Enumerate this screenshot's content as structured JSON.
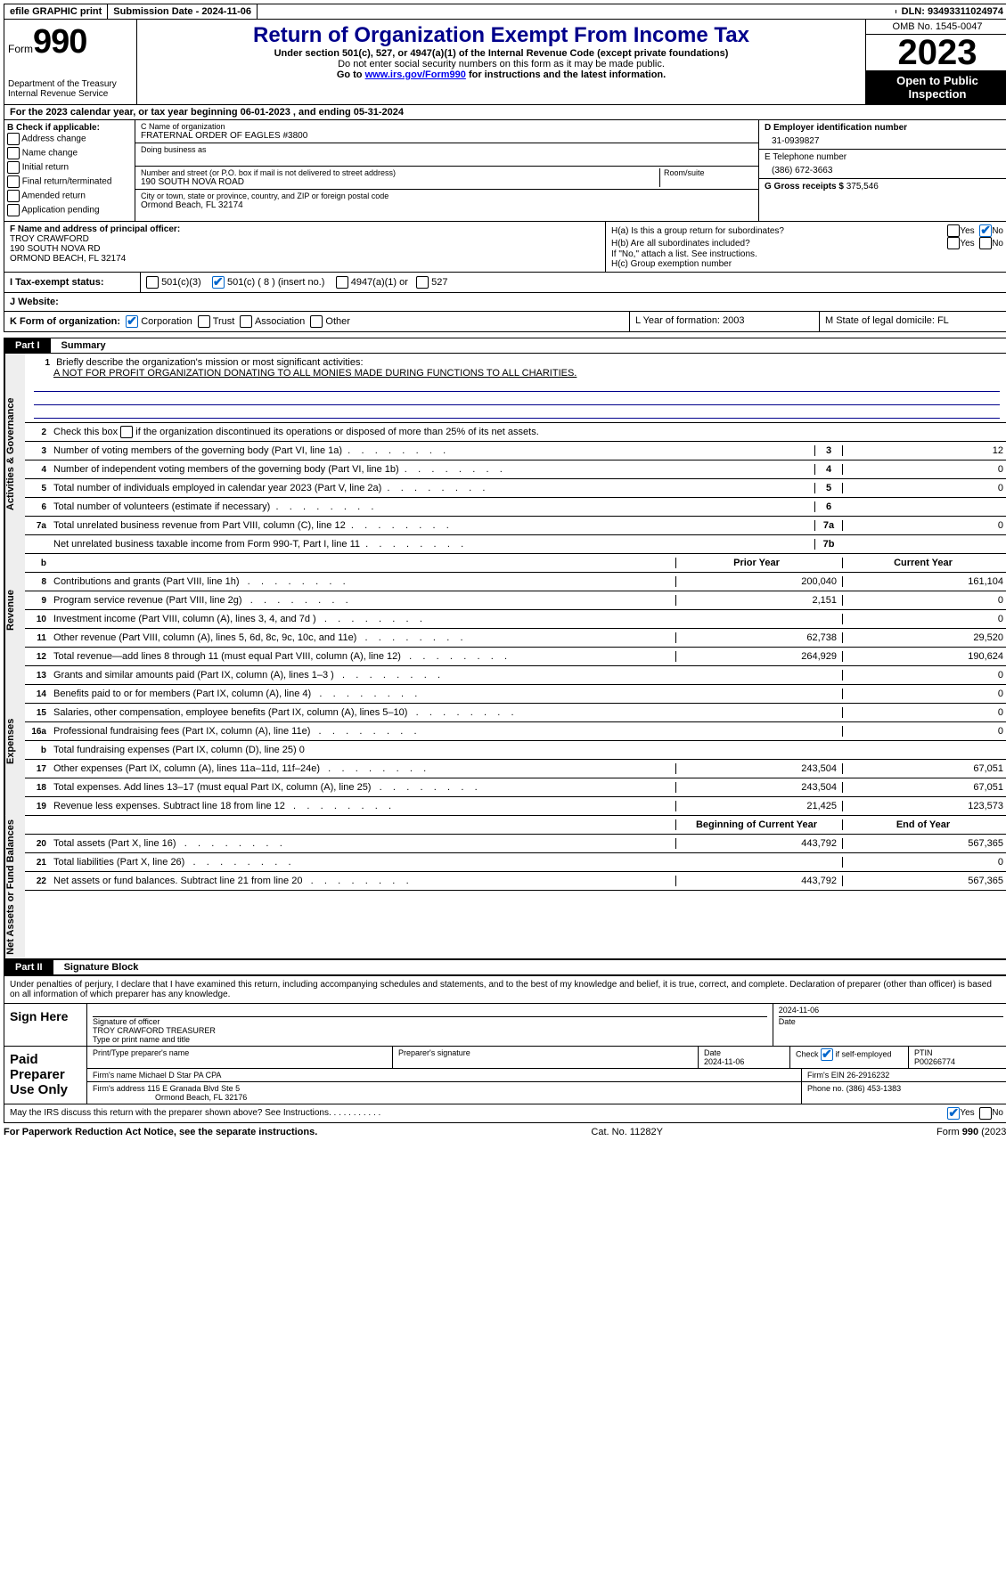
{
  "topbar": {
    "efile": "efile GRAPHIC print",
    "submission": "Submission Date - 2024-11-06",
    "dln": "DLN: 93493311024974"
  },
  "header": {
    "form_prefix": "Form",
    "form_no": "990",
    "dept": "Department of the Treasury Internal Revenue Service",
    "title": "Return of Organization Exempt From Income Tax",
    "sub1": "Under section 501(c), 527, or 4947(a)(1) of the Internal Revenue Code (except private foundations)",
    "sub2": "Do not enter social security numbers on this form as it may be made public.",
    "sub3_prefix": "Go to ",
    "sub3_link": "www.irs.gov/Form990",
    "sub3_suffix": " for instructions and the latest information.",
    "omb": "OMB No. 1545-0047",
    "year": "2023",
    "open": "Open to Public Inspection"
  },
  "line_a": "For the 2023 calendar year, or tax year beginning 06-01-2023   , and ending 05-31-2024",
  "box_b": {
    "title": "B Check if applicable:",
    "opts": [
      "Address change",
      "Name change",
      "Initial return",
      "Final return/terminated",
      "Amended return",
      "Application pending"
    ]
  },
  "box_c": {
    "name_label": "C Name of organization",
    "name": "FRATERNAL ORDER OF EAGLES #3800",
    "dba_label": "Doing business as",
    "addr_label": "Number and street (or P.O. box if mail is not delivered to street address)",
    "room_label": "Room/suite",
    "addr": "190 SOUTH NOVA ROAD",
    "city_label": "City or town, state or province, country, and ZIP or foreign postal code",
    "city": "Ormond Beach, FL  32174"
  },
  "box_d": {
    "label": "D Employer identification number",
    "value": "31-0939827"
  },
  "box_e": {
    "label": "E Telephone number",
    "value": "(386) 672-3663"
  },
  "box_g": {
    "label": "G Gross receipts $",
    "value": "375,546"
  },
  "box_f": {
    "label": "F  Name and address of principal officer:",
    "name": "TROY CRAWFORD",
    "addr1": "190 SOUTH NOVA RD",
    "addr2": "ORMOND BEACH, FL  32174"
  },
  "box_h": {
    "a": "H(a)  Is this a group return for subordinates?",
    "a_no_checked": true,
    "b": "H(b)  Are all subordinates included?",
    "b_note": "If \"No,\" attach a list. See instructions.",
    "c": "H(c)  Group exemption number "
  },
  "box_i": {
    "label": "I  Tax-exempt status:",
    "opts": {
      "c3": "501(c)(3)",
      "c": "501(c) ( 8 ) (insert no.)",
      "p4947": "4947(a)(1) or",
      "p527": "527"
    }
  },
  "box_j": "J  Website: ",
  "box_k": {
    "label": "K Form of organization:",
    "opts": [
      "Corporation",
      "Trust",
      "Association",
      "Other"
    ]
  },
  "box_l": "L Year of formation: 2003",
  "box_m": "M State of legal domicile: FL",
  "part1": {
    "tag": "Part I",
    "title": "Summary",
    "line1_label": "Briefly describe the organization's mission or most significant activities:",
    "line1_val": "A NOT FOR PROFIT ORGANIZATION DONATING TO ALL MONIES MADE DURING FUNCTIONS TO ALL CHARITIES.",
    "line2": "Check this box      if the organization discontinued its operations or disposed of more than 25% of its net assets.",
    "lines_gov": [
      {
        "n": "3",
        "t": "Number of voting members of the governing body (Part VI, line 1a)",
        "col": "3",
        "v": "12"
      },
      {
        "n": "4",
        "t": "Number of independent voting members of the governing body (Part VI, line 1b)",
        "col": "4",
        "v": "0"
      },
      {
        "n": "5",
        "t": "Total number of individuals employed in calendar year 2023 (Part V, line 2a)",
        "col": "5",
        "v": "0"
      },
      {
        "n": "6",
        "t": "Total number of volunteers (estimate if necessary)",
        "col": "6",
        "v": ""
      },
      {
        "n": "7a",
        "t": "Total unrelated business revenue from Part VIII, column (C), line 12",
        "col": "7a",
        "v": "0"
      },
      {
        "n": "",
        "t": "Net unrelated business taxable income from Form 990-T, Part I, line 11",
        "col": "7b",
        "v": ""
      }
    ],
    "header_row": {
      "n": "b",
      "prior": "Prior Year",
      "current": "Current Year"
    },
    "lines_rev": [
      {
        "n": "8",
        "t": "Contributions and grants (Part VIII, line 1h)",
        "p": "200,040",
        "c": "161,104"
      },
      {
        "n": "9",
        "t": "Program service revenue (Part VIII, line 2g)",
        "p": "2,151",
        "c": "0"
      },
      {
        "n": "10",
        "t": "Investment income (Part VIII, column (A), lines 3, 4, and 7d )",
        "p": "",
        "c": "0"
      },
      {
        "n": "11",
        "t": "Other revenue (Part VIII, column (A), lines 5, 6d, 8c, 9c, 10c, and 11e)",
        "p": "62,738",
        "c": "29,520"
      },
      {
        "n": "12",
        "t": "Total revenue—add lines 8 through 11 (must equal Part VIII, column (A), line 12)",
        "p": "264,929",
        "c": "190,624"
      }
    ],
    "lines_exp": [
      {
        "n": "13",
        "t": "Grants and similar amounts paid (Part IX, column (A), lines 1–3 )",
        "p": "",
        "c": "0"
      },
      {
        "n": "14",
        "t": "Benefits paid to or for members (Part IX, column (A), line 4)",
        "p": "",
        "c": "0"
      },
      {
        "n": "15",
        "t": "Salaries, other compensation, employee benefits (Part IX, column (A), lines 5–10)",
        "p": "",
        "c": "0"
      },
      {
        "n": "16a",
        "t": "Professional fundraising fees (Part IX, column (A), line 11e)",
        "p": "",
        "c": "0"
      },
      {
        "n": "b",
        "t": "Total fundraising expenses (Part IX, column (D), line 25) 0",
        "p": "shade",
        "c": "shade"
      },
      {
        "n": "17",
        "t": "Other expenses (Part IX, column (A), lines 11a–11d, 11f–24e)",
        "p": "243,504",
        "c": "67,051"
      },
      {
        "n": "18",
        "t": "Total expenses. Add lines 13–17 (must equal Part IX, column (A), line 25)",
        "p": "243,504",
        "c": "67,051"
      },
      {
        "n": "19",
        "t": "Revenue less expenses. Subtract line 18 from line 12",
        "p": "21,425",
        "c": "123,573"
      }
    ],
    "header_row2": {
      "prior": "Beginning of Current Year",
      "current": "End of Year"
    },
    "lines_net": [
      {
        "n": "20",
        "t": "Total assets (Part X, line 16)",
        "p": "443,792",
        "c": "567,365"
      },
      {
        "n": "21",
        "t": "Total liabilities (Part X, line 26)",
        "p": "",
        "c": "0"
      },
      {
        "n": "22",
        "t": "Net assets or fund balances. Subtract line 21 from line 20",
        "p": "443,792",
        "c": "567,365"
      }
    ],
    "tabs": {
      "gov": "Activities & Governance",
      "rev": "Revenue",
      "exp": "Expenses",
      "net": "Net Assets or Fund Balances"
    }
  },
  "part2": {
    "tag": "Part II",
    "title": "Signature Block",
    "declaration": "Under penalties of perjury, I declare that I have examined this return, including accompanying schedules and statements, and to the best of my knowledge and belief, it is true, correct, and complete. Declaration of preparer (other than officer) is based on all information of which preparer has any knowledge.",
    "sign_here": "Sign Here",
    "sig_date": "2024-11-06",
    "sig_officer_label": "Signature of officer",
    "sig_officer": "TROY CRAWFORD  TREASURER",
    "sig_officer_type": "Type or print name and title",
    "date_label": "Date",
    "paid": "Paid Preparer Use Only",
    "preparer_name_label": "Print/Type preparer's name",
    "preparer_sig_label": "Preparer's signature",
    "prep_date_label": "Date",
    "prep_date": "2024-11-06",
    "check_self": "Check       if self-employed",
    "ptin_label": "PTIN",
    "ptin": "P00266774",
    "firm_name_label": "Firm's name   ",
    "firm_name": "Michael D Star PA CPA",
    "firm_ein_label": "Firm's EIN  ",
    "firm_ein": "26-2916232",
    "firm_addr_label": "Firm's address ",
    "firm_addr1": "115 E Granada Blvd Ste 5",
    "firm_addr2": "Ormond Beach, FL  32176",
    "phone_label": "Phone no.",
    "phone": "(386) 453-1383",
    "may_irs": "May the IRS discuss this return with the preparer shown above? See Instructions.",
    "yes": "Yes",
    "no": "No"
  },
  "footer": {
    "left": "For Paperwork Reduction Act Notice, see the separate instructions.",
    "mid": "Cat. No. 11282Y",
    "right": "Form 990 (2023)"
  }
}
